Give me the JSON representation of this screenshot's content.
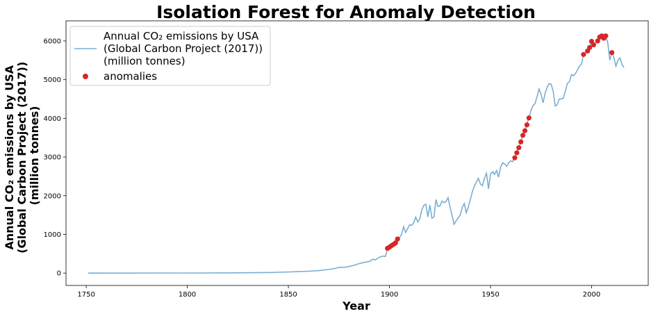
{
  "chart_data": {
    "type": "line",
    "title": "Isolation Forest for Anomaly Detection",
    "xlabel": "Year",
    "ylabel_lines": [
      "Annual CO₂ emissions by USA",
      "(Global Carbon Project (2017))",
      "(million tonnes)"
    ],
    "xlim": [
      1740,
      2028
    ],
    "ylim": [
      -320,
      6520
    ],
    "xticks": [
      1750,
      1800,
      1850,
      1900,
      1950,
      2000
    ],
    "yticks": [
      0,
      1000,
      2000,
      3000,
      4000,
      5000,
      6000
    ],
    "legend_position": "upper-left",
    "colors": {
      "line": "#7aaed1",
      "anomaly": "#d62728"
    },
    "series": [
      {
        "name_lines": [
          "Annual CO₂ emissions by USA",
          "(Global Carbon Project (2017))",
          "(million tonnes)"
        ],
        "kind": "line",
        "points": [
          [
            1751,
            0
          ],
          [
            1800,
            1
          ],
          [
            1820,
            4
          ],
          [
            1830,
            8
          ],
          [
            1840,
            14
          ],
          [
            1850,
            28
          ],
          [
            1855,
            38
          ],
          [
            1860,
            48
          ],
          [
            1865,
            62
          ],
          [
            1870,
            95
          ],
          [
            1873,
            120
          ],
          [
            1875,
            145
          ],
          [
            1878,
            150
          ],
          [
            1880,
            170
          ],
          [
            1883,
            210
          ],
          [
            1885,
            245
          ],
          [
            1888,
            280
          ],
          [
            1890,
            300
          ],
          [
            1892,
            360
          ],
          [
            1893,
            340
          ],
          [
            1895,
            410
          ],
          [
            1897,
            440
          ],
          [
            1898,
            430
          ],
          [
            1899,
            620
          ],
          [
            1900,
            650
          ],
          [
            1901,
            690
          ],
          [
            1902,
            730
          ],
          [
            1903,
            760
          ],
          [
            1904,
            880
          ],
          [
            1905,
            920
          ],
          [
            1906,
            1000
          ],
          [
            1907,
            1200
          ],
          [
            1908,
            1050
          ],
          [
            1909,
            1150
          ],
          [
            1910,
            1250
          ],
          [
            1911,
            1230
          ],
          [
            1912,
            1300
          ],
          [
            1913,
            1450
          ],
          [
            1914,
            1320
          ],
          [
            1915,
            1400
          ],
          [
            1916,
            1630
          ],
          [
            1917,
            1750
          ],
          [
            1918,
            1780
          ],
          [
            1919,
            1450
          ],
          [
            1920,
            1760
          ],
          [
            1921,
            1420
          ],
          [
            1922,
            1450
          ],
          [
            1923,
            1900
          ],
          [
            1924,
            1720
          ],
          [
            1925,
            1740
          ],
          [
            1926,
            1860
          ],
          [
            1927,
            1820
          ],
          [
            1928,
            1850
          ],
          [
            1929,
            1950
          ],
          [
            1930,
            1700
          ],
          [
            1931,
            1480
          ],
          [
            1932,
            1260
          ],
          [
            1933,
            1350
          ],
          [
            1934,
            1430
          ],
          [
            1935,
            1500
          ],
          [
            1936,
            1700
          ],
          [
            1937,
            1800
          ],
          [
            1938,
            1560
          ],
          [
            1939,
            1700
          ],
          [
            1940,
            1900
          ],
          [
            1941,
            2100
          ],
          [
            1942,
            2250
          ],
          [
            1943,
            2350
          ],
          [
            1944,
            2450
          ],
          [
            1945,
            2300
          ],
          [
            1946,
            2260
          ],
          [
            1947,
            2450
          ],
          [
            1948,
            2580
          ],
          [
            1949,
            2180
          ],
          [
            1950,
            2560
          ],
          [
            1951,
            2620
          ],
          [
            1952,
            2550
          ],
          [
            1953,
            2650
          ],
          [
            1954,
            2480
          ],
          [
            1955,
            2740
          ],
          [
            1956,
            2850
          ],
          [
            1957,
            2820
          ],
          [
            1958,
            2760
          ],
          [
            1959,
            2850
          ],
          [
            1960,
            2900
          ],
          [
            1961,
            2880
          ],
          [
            1962,
            2980
          ],
          [
            1963,
            3120
          ],
          [
            1964,
            3250
          ],
          [
            1965,
            3400
          ],
          [
            1966,
            3580
          ],
          [
            1967,
            3700
          ],
          [
            1968,
            3850
          ],
          [
            1969,
            4020
          ],
          [
            1970,
            4200
          ],
          [
            1971,
            4330
          ],
          [
            1972,
            4380
          ],
          [
            1973,
            4560
          ],
          [
            1974,
            4760
          ],
          [
            1975,
            4620
          ],
          [
            1976,
            4400
          ],
          [
            1977,
            4650
          ],
          [
            1978,
            4800
          ],
          [
            1979,
            4900
          ],
          [
            1980,
            4880
          ],
          [
            1981,
            4700
          ],
          [
            1982,
            4320
          ],
          [
            1983,
            4350
          ],
          [
            1984,
            4500
          ],
          [
            1985,
            4500
          ],
          [
            1986,
            4520
          ],
          [
            1987,
            4700
          ],
          [
            1988,
            4900
          ],
          [
            1989,
            4950
          ],
          [
            1990,
            5130
          ],
          [
            1991,
            5100
          ],
          [
            1992,
            5160
          ],
          [
            1993,
            5250
          ],
          [
            1994,
            5350
          ],
          [
            1995,
            5400
          ],
          [
            1996,
            5650
          ],
          [
            1997,
            5700
          ],
          [
            1998,
            5750
          ],
          [
            1999,
            5850
          ],
          [
            2000,
            6000
          ],
          [
            2001,
            5900
          ],
          [
            2002,
            5950
          ],
          [
            2003,
            6000
          ],
          [
            2004,
            6100
          ],
          [
            2005,
            6130
          ],
          [
            2006,
            6080
          ],
          [
            2007,
            6130
          ],
          [
            2008,
            5950
          ],
          [
            2009,
            5500
          ],
          [
            2010,
            5700
          ],
          [
            2011,
            5580
          ],
          [
            2012,
            5350
          ],
          [
            2013,
            5500
          ],
          [
            2014,
            5560
          ],
          [
            2015,
            5400
          ],
          [
            2016,
            5310
          ]
        ]
      },
      {
        "name": "anomalies",
        "kind": "scatter",
        "points": [
          [
            1899,
            640
          ],
          [
            1900,
            670
          ],
          [
            1901,
            710
          ],
          [
            1902,
            740
          ],
          [
            1903,
            780
          ],
          [
            1904,
            880
          ],
          [
            1962,
            2980
          ],
          [
            1963,
            3110
          ],
          [
            1964,
            3240
          ],
          [
            1965,
            3390
          ],
          [
            1966,
            3560
          ],
          [
            1967,
            3680
          ],
          [
            1968,
            3830
          ],
          [
            1969,
            4010
          ],
          [
            1996,
            5650
          ],
          [
            1998,
            5740
          ],
          [
            1999,
            5830
          ],
          [
            2000,
            5990
          ],
          [
            2001,
            5900
          ],
          [
            2003,
            6000
          ],
          [
            2004,
            6100
          ],
          [
            2005,
            6130
          ],
          [
            2006,
            6070
          ],
          [
            2007,
            6130
          ],
          [
            2010,
            5700
          ]
        ]
      }
    ]
  }
}
